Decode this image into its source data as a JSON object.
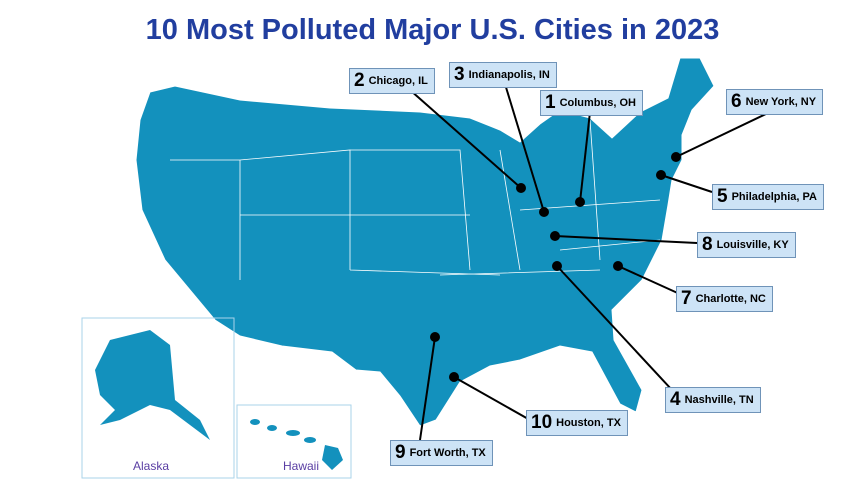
{
  "title": "10 Most Polluted Major U.S. Cities in 2023",
  "cities": [
    {
      "rank": 1,
      "name": "Columbus, OH"
    },
    {
      "rank": 2,
      "name": "Chicago, IL"
    },
    {
      "rank": 3,
      "name": "Indianapolis, IN"
    },
    {
      "rank": 4,
      "name": "Nashville, TN"
    },
    {
      "rank": 5,
      "name": "Philadelphia, PA"
    },
    {
      "rank": 6,
      "name": "New York, NY"
    },
    {
      "rank": 7,
      "name": "Charlotte, NC"
    },
    {
      "rank": 8,
      "name": "Louisville, KY"
    },
    {
      "rank": 9,
      "name": "Fort Worth, TX"
    },
    {
      "rank": 10,
      "name": "Houston, TX"
    }
  ],
  "insets": [
    "Alaska",
    "Hawaii"
  ]
}
